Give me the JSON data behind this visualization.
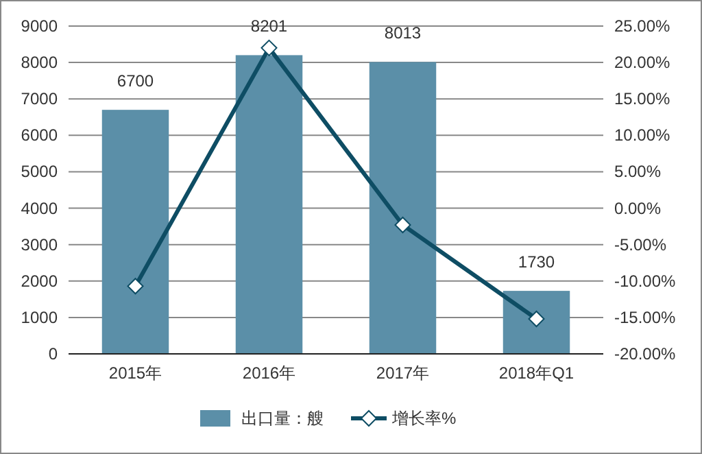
{
  "chart_data": {
    "type": "bar",
    "categories": [
      "2015年",
      "2016年",
      "2017年",
      "2018年Q1"
    ],
    "series": [
      {
        "name": "出口量：艘",
        "color": "#5b8fa8",
        "values": [
          6700,
          8201,
          8013,
          1730
        ],
        "value_labels": [
          "6700",
          "8201",
          "8013",
          "1730"
        ]
      },
      {
        "name": "增长率%",
        "type": "line",
        "axis": "y2",
        "color": "#0e4d64",
        "marker": "diamond",
        "values": [
          -10.7,
          22.0,
          -2.3,
          -15.2
        ]
      }
    ],
    "ylim": [
      0,
      9000
    ],
    "yticks": [
      0,
      1000,
      2000,
      3000,
      4000,
      5000,
      6000,
      7000,
      8000,
      9000
    ],
    "y2lim": [
      -20,
      25
    ],
    "y2ticks": [
      {
        "value": -20,
        "label": "-20.00%"
      },
      {
        "value": -15,
        "label": "-15.00%"
      },
      {
        "value": -10,
        "label": "-10.00%"
      },
      {
        "value": -5,
        "label": "-5.00%"
      },
      {
        "value": 0,
        "label": "0.00%"
      },
      {
        "value": 5,
        "label": "5.00%"
      },
      {
        "value": 10,
        "label": "10.00%"
      },
      {
        "value": 15,
        "label": "15.00%"
      },
      {
        "value": 20,
        "label": "20.00%"
      },
      {
        "value": 25,
        "label": "25.00%"
      }
    ],
    "grid": "y",
    "legend": "bottom"
  }
}
